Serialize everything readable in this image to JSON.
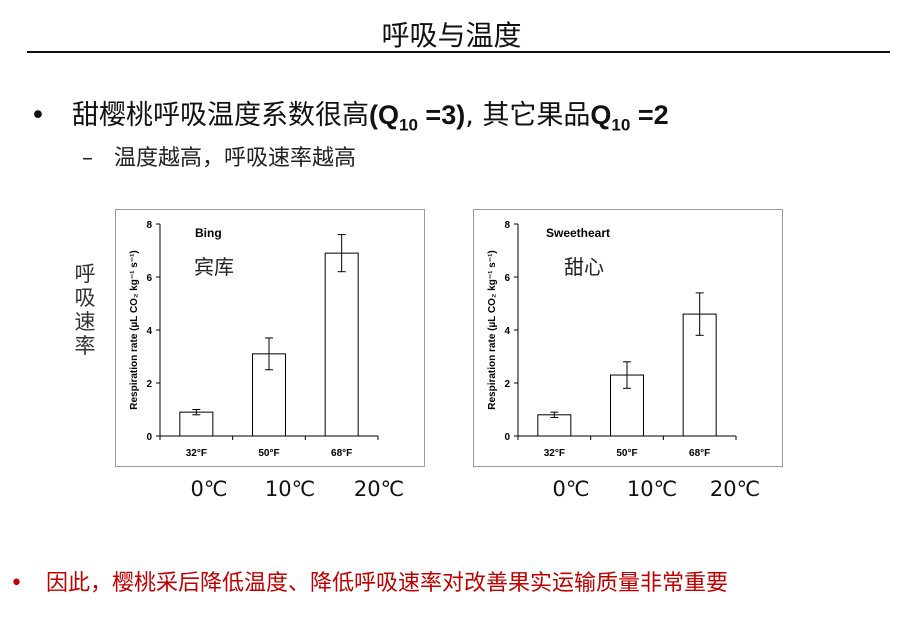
{
  "slide": {
    "title": "呼吸与温度",
    "bullet_main_pre": "甜樱桃呼吸温度系数很高",
    "bullet_main_q1_open": "(Q",
    "bullet_main_q1_sub": "10",
    "bullet_main_q1_close": " =3)",
    "bullet_main_mid": ", 其它果品",
    "bullet_main_q2": "Q",
    "bullet_main_q2_sub": "10",
    "bullet_main_q2_close": " =2",
    "bullet_sub": "温度越高，呼吸速率越高",
    "side_label": [
      "呼",
      "吸",
      "速",
      "率"
    ],
    "conclusion": "因此，樱桃采后降低温度、降低呼吸速率对改善果实运输质量非常重要",
    "bullet_symbol": "•",
    "dash_symbol": "–"
  },
  "temps_celsius": [
    "0℃",
    "10℃",
    "20℃"
  ],
  "chart_data": [
    {
      "type": "bar",
      "title": "Bing",
      "annotation": "宾库",
      "categories": [
        "32°F",
        "50°F",
        "68°F"
      ],
      "values": [
        0.9,
        3.1,
        6.9
      ],
      "errors": [
        0.1,
        0.6,
        0.7
      ],
      "ylabel": "Respiration rate (µL CO₂ kg⁻¹ s⁻¹)",
      "ylim": [
        0,
        8
      ],
      "yticks": [
        "0",
        "2",
        "4",
        "6",
        "8"
      ],
      "grid": false,
      "color": "#ffffff"
    },
    {
      "type": "bar",
      "title": "Sweetheart",
      "annotation": "甜心",
      "categories": [
        "32°F",
        "50°F",
        "68°F"
      ],
      "values": [
        0.8,
        2.3,
        4.6
      ],
      "errors": [
        0.1,
        0.5,
        0.8
      ],
      "ylabel": "Respiration rate (µL CO₂ kg⁻¹ s⁻¹)",
      "ylim": [
        0,
        8
      ],
      "yticks": [
        "0",
        "2",
        "4",
        "6",
        "8"
      ],
      "grid": false,
      "color": "#ffffff"
    }
  ]
}
